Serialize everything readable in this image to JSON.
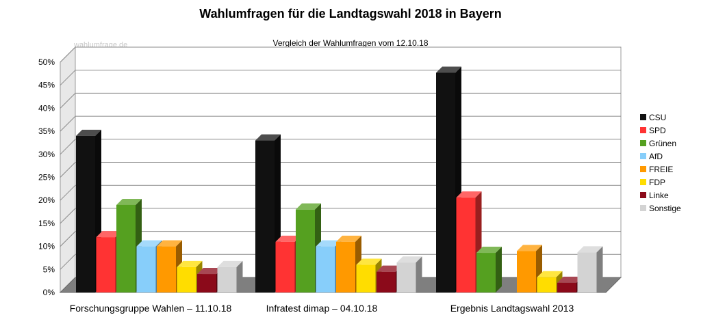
{
  "page": {
    "title": "Wahlumfragen für die Landtagswahl 2018 in Bayern",
    "subtitle": "Vergleich der Wahlumfragen vom 12.10.18",
    "watermark": "wahlumfrage.de"
  },
  "chart_data": {
    "type": "bar",
    "title": "Wahlumfragen für die Landtagswahl 2018 in Bayern",
    "subtitle": "Vergleich der Wahlumfragen vom 12.10.18",
    "categories": [
      "Forschungsgruppe Wahlen – 11.10.18",
      "Infratest dimap – 04.10.18",
      "Ergebnis Landtagswahl 2013"
    ],
    "ylim": [
      0,
      50
    ],
    "yticks": [
      "0%",
      "5%",
      "10%",
      "15%",
      "20%",
      "25%",
      "30%",
      "35%",
      "40%",
      "45%",
      "50%"
    ],
    "grid": true,
    "legend_position": "right",
    "series": [
      {
        "name": "CSU",
        "color": "#111111",
        "values": [
          34,
          33,
          47.7
        ]
      },
      {
        "name": "SPD",
        "color": "#ff3333",
        "values": [
          12,
          11,
          20.6
        ]
      },
      {
        "name": "Grünen",
        "color": "#55a020",
        "values": [
          19,
          18,
          8.6
        ]
      },
      {
        "name": "AfD",
        "color": "#87cefa",
        "values": [
          10,
          10,
          null
        ]
      },
      {
        "name": "FREIE",
        "color": "#ff9900",
        "values": [
          10,
          11,
          9
        ]
      },
      {
        "name": "FDP",
        "color": "#ffdd00",
        "values": [
          5.5,
          6,
          3.3
        ]
      },
      {
        "name": "Linke",
        "color": "#8b0a1a",
        "values": [
          4,
          4.5,
          2.1
        ]
      },
      {
        "name": "Sonstige",
        "color": "#d3d3d3",
        "values": [
          5.5,
          6.5,
          8.7
        ]
      }
    ]
  }
}
